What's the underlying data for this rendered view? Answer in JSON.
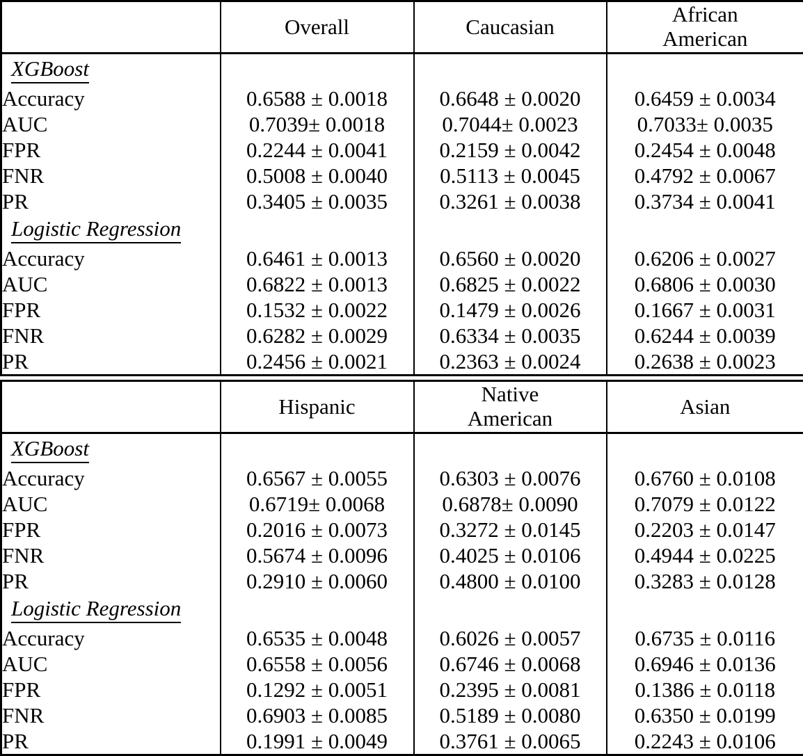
{
  "styles": {
    "text_color": "#000000",
    "border_color": "#000000",
    "background_color": "#ffffff"
  },
  "metric_row_labels": [
    "Accuracy",
    "AUC",
    "FPR",
    "FNR",
    "PR"
  ],
  "tables": [
    {
      "name": "top-table",
      "header": [
        "",
        "Overall",
        "Caucasian",
        "African\nAmerican"
      ],
      "sections": [
        {
          "group_label": "XGBoost",
          "rows": [
            {
              "label": "Accuracy",
              "values": [
                "0.6588 ± 0.0018",
                "0.6648 ± 0.0020",
                "0.6459 ± 0.0034"
              ]
            },
            {
              "label": "AUC",
              "values": [
                "0.7039± 0.0018",
                "0.7044± 0.0023",
                "0.7033± 0.0035"
              ]
            },
            {
              "label": "FPR",
              "values": [
                "0.2244 ± 0.0041",
                "0.2159 ± 0.0042",
                "0.2454 ± 0.0048"
              ]
            },
            {
              "label": "FNR",
              "values": [
                "0.5008 ± 0.0040",
                "0.5113 ± 0.0045",
                "0.4792 ± 0.0067"
              ]
            },
            {
              "label": "PR",
              "values": [
                "0.3405 ± 0.0035",
                "0.3261 ± 0.0038",
                "0.3734 ± 0.0041"
              ]
            }
          ]
        },
        {
          "group_label": "Logistic Regression",
          "rows": [
            {
              "label": "Accuracy",
              "values": [
                "0.6461 ± 0.0013",
                "0.6560 ± 0.0020",
                "0.6206 ± 0.0027"
              ]
            },
            {
              "label": "AUC",
              "values": [
                "0.6822 ± 0.0013",
                "0.6825 ± 0.0022",
                "0.6806 ± 0.0030"
              ]
            },
            {
              "label": "FPR",
              "values": [
                "0.1532 ± 0.0022",
                "0.1479 ± 0.0026",
                "0.1667 ± 0.0031"
              ]
            },
            {
              "label": "FNR",
              "values": [
                "0.6282 ± 0.0029",
                "0.6334 ± 0.0035",
                "0.6244 ± 0.0039"
              ]
            },
            {
              "label": "PR",
              "values": [
                "0.2456 ± 0.0021",
                "0.2363 ± 0.0024",
                "0.2638 ± 0.0023"
              ]
            }
          ]
        }
      ]
    },
    {
      "name": "bottom-table",
      "header": [
        "",
        "Hispanic",
        "Native\nAmerican",
        "Asian"
      ],
      "sections": [
        {
          "group_label": "XGBoost",
          "rows": [
            {
              "label": "Accuracy",
              "values": [
                "0.6567 ± 0.0055",
                "0.6303 ± 0.0076",
                "0.6760 ± 0.0108"
              ]
            },
            {
              "label": "AUC",
              "values": [
                "0.6719± 0.0068",
                "0.6878± 0.0090",
                "0.7079 ± 0.0122"
              ]
            },
            {
              "label": "FPR",
              "values": [
                "0.2016 ± 0.0073",
                "0.3272 ± 0.0145",
                "0.2203 ± 0.0147"
              ]
            },
            {
              "label": "FNR",
              "values": [
                "0.5674 ± 0.0096",
                "0.4025 ± 0.0106",
                "0.4944 ± 0.0225"
              ]
            },
            {
              "label": "PR",
              "values": [
                "0.2910 ± 0.0060",
                "0.4800 ± 0.0100",
                "0.3283 ± 0.0128"
              ]
            }
          ]
        },
        {
          "group_label": "Logistic Regression",
          "rows": [
            {
              "label": "Accuracy",
              "values": [
                "0.6535 ± 0.0048",
                "0.6026 ± 0.0057",
                "0.6735 ± 0.0116"
              ]
            },
            {
              "label": "AUC",
              "values": [
                "0.6558 ± 0.0056",
                "0.6746 ± 0.0068",
                "0.6946 ± 0.0136"
              ]
            },
            {
              "label": "FPR",
              "values": [
                "0.1292 ± 0.0051",
                "0.2395 ± 0.0081",
                "0.1386 ± 0.0118"
              ]
            },
            {
              "label": "FNR",
              "values": [
                "0.6903 ± 0.0085",
                "0.5189 ± 0.0080",
                "0.6350 ± 0.0199"
              ]
            },
            {
              "label": "PR",
              "values": [
                "0.1991 ± 0.0049",
                "0.3761 ± 0.0065",
                "0.2243 ± 0.0106"
              ]
            }
          ]
        }
      ]
    }
  ]
}
